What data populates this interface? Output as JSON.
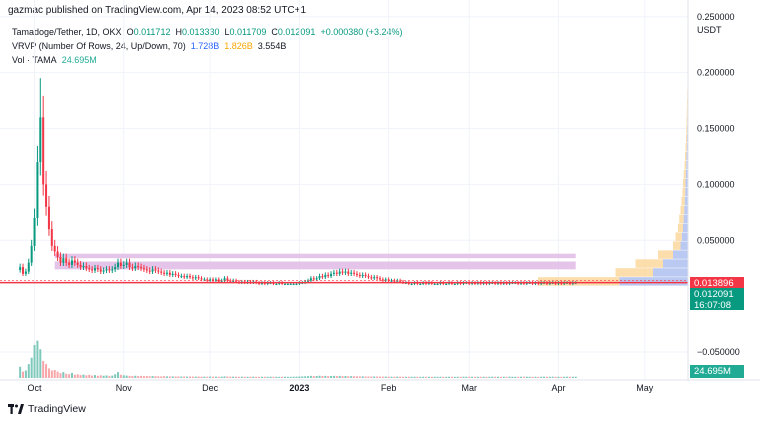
{
  "header": {
    "publisher_line": "gazmac published on TradingView.com, Apr 14, 2023 08:52 UTC+1"
  },
  "legend": {
    "symbol": "Tamadoge/Tether, 1D, OKX",
    "open_label": "O",
    "open_value": "0.011712",
    "high_label": "H",
    "high_value": "0.013330",
    "low_label": "L",
    "low_value": "0.011709",
    "close_label": "C",
    "close_value": "0.012091",
    "change": "+0.000380 (+3.24%)",
    "vrvp_label": "VRVP (Number Of Rows, 24, Up/Down, 70)",
    "vrvp_up": "1.728B",
    "vrvp_down": "1.826B",
    "vrvp_total": "3.554B",
    "vol_label": "Vol · TAMA",
    "vol_value": "24.695M"
  },
  "price_tags": {
    "red": "0.013896",
    "green_price": "0.012091",
    "green_countdown": "16:07:08",
    "volume": "24.695M"
  },
  "footer": {
    "brand": "TradingView"
  },
  "colors": {
    "up": "#089981",
    "down": "#f23645",
    "vol_up": "#7fc9bc",
    "vol_down": "#f7a7a9",
    "profile_up": "#aebfef",
    "profile_down": "#fcd79e",
    "value_area": "#e1bee7"
  },
  "chart_data": {
    "type": "candlestick",
    "currency": "USDT",
    "y_ticks": [
      0.25,
      0.2,
      0.15,
      0.1,
      0.05,
      -0.05
    ],
    "y_tick_labels": [
      "0.250000",
      "0.200000",
      "0.150000",
      "0.100000",
      "0.050000",
      "−0.050000"
    ],
    "ylim": [
      -0.075,
      0.265
    ],
    "x_ticks": [
      {
        "label": "Oct",
        "date": "2022-10-01"
      },
      {
        "label": "Nov",
        "date": "2022-11-01"
      },
      {
        "label": "Dec",
        "date": "2022-12-01"
      },
      {
        "label": "2023",
        "date": "2023-01-01"
      },
      {
        "label": "Feb",
        "date": "2023-02-01"
      },
      {
        "label": "Mar",
        "date": "2023-03-01"
      },
      {
        "label": "Apr",
        "date": "2023-04-01"
      },
      {
        "label": "May",
        "date": "2023-05-01"
      }
    ],
    "xlim": [
      "2022-09-19",
      "2023-05-16"
    ],
    "first_date": "2022-09-26",
    "closes": [
      0.026,
      0.02,
      0.022,
      0.03,
      0.045,
      0.07,
      0.12,
      0.16,
      0.1,
      0.08,
      0.06,
      0.045,
      0.04,
      0.035,
      0.03,
      0.034,
      0.03,
      0.028,
      0.032,
      0.03,
      0.028,
      0.026,
      0.027,
      0.025,
      0.024,
      0.023,
      0.025,
      0.024,
      0.022,
      0.023,
      0.024,
      0.023,
      0.024,
      0.026,
      0.03,
      0.027,
      0.028,
      0.03,
      0.026,
      0.025,
      0.027,
      0.026,
      0.025,
      0.024,
      0.023,
      0.022,
      0.024,
      0.023,
      0.022,
      0.021,
      0.02,
      0.021,
      0.019,
      0.02,
      0.019,
      0.018,
      0.018,
      0.017,
      0.018,
      0.017,
      0.016,
      0.017,
      0.016,
      0.015,
      0.015,
      0.014,
      0.015,
      0.014,
      0.015,
      0.013,
      0.014,
      0.016,
      0.014,
      0.013,
      0.014,
      0.013,
      0.012,
      0.013,
      0.012,
      0.013,
      0.012,
      0.013,
      0.012,
      0.011,
      0.012,
      0.011,
      0.012,
      0.012,
      0.011,
      0.011,
      0.012,
      0.011,
      0.011,
      0.011,
      0.011,
      0.011,
      0.011,
      0.012,
      0.012,
      0.013,
      0.014,
      0.016,
      0.015,
      0.016,
      0.018,
      0.017,
      0.019,
      0.018,
      0.02,
      0.021,
      0.02,
      0.022,
      0.021,
      0.022,
      0.02,
      0.021,
      0.02,
      0.019,
      0.018,
      0.019,
      0.018,
      0.017,
      0.016,
      0.017,
      0.016,
      0.015,
      0.014,
      0.015,
      0.014,
      0.014,
      0.013,
      0.014,
      0.013,
      0.012,
      0.012,
      0.011,
      0.011,
      0.012,
      0.011,
      0.011,
      0.012,
      0.011,
      0.012,
      0.011,
      0.011,
      0.011,
      0.012,
      0.011,
      0.011,
      0.012,
      0.011,
      0.011,
      0.012,
      0.011,
      0.012,
      0.012,
      0.011,
      0.012,
      0.011,
      0.012,
      0.011,
      0.012,
      0.011,
      0.012,
      0.012,
      0.011,
      0.012,
      0.011,
      0.012,
      0.011,
      0.012,
      0.012,
      0.012,
      0.011,
      0.012,
      0.011,
      0.012,
      0.012,
      0.011,
      0.012,
      0.011,
      0.012,
      0.012,
      0.011,
      0.012,
      0.012,
      0.011,
      0.012,
      0.011,
      0.012,
      0.012,
      0.011,
      0.012,
      0.012
    ],
    "peak_high": 0.195,
    "volume_millions": [
      210,
      120,
      140,
      260,
      380,
      620,
      700,
      540,
      320,
      260,
      180,
      140,
      150,
      120,
      90,
      110,
      80,
      70,
      95,
      60,
      70,
      55,
      65,
      50,
      60,
      45,
      55,
      40,
      50,
      42,
      48,
      40,
      45,
      70,
      110,
      60,
      50,
      45,
      40,
      38,
      42,
      36,
      40,
      35,
      38,
      33,
      36,
      34,
      32,
      30,
      34,
      31,
      29,
      30,
      28,
      30,
      27,
      29,
      26,
      28,
      27,
      26,
      28,
      25,
      26,
      24,
      27,
      25,
      26,
      24,
      25,
      30,
      28,
      25,
      26,
      24,
      23,
      25,
      24,
      23,
      24,
      25,
      23,
      22,
      24,
      23,
      22,
      25,
      23,
      24,
      22,
      23,
      24,
      23,
      22,
      24,
      26,
      28,
      30,
      32,
      35,
      40,
      36,
      38,
      42,
      38,
      40,
      36,
      38,
      40,
      37,
      39,
      36,
      38,
      34,
      35,
      33,
      32,
      30,
      31,
      29,
      28,
      27,
      29,
      28,
      27,
      26,
      27,
      26,
      25,
      24,
      26,
      25,
      24,
      23,
      24,
      23,
      24,
      23,
      22,
      24,
      23,
      24,
      22,
      23,
      22,
      24,
      23,
      22,
      24,
      23,
      22,
      24,
      23,
      25,
      24,
      23,
      24,
      22,
      24,
      23,
      24,
      22,
      24,
      25,
      23,
      24,
      22,
      24,
      23,
      25,
      24,
      23,
      22,
      24,
      23,
      25,
      24,
      23,
      24,
      22,
      24,
      25,
      23,
      24,
      25,
      23,
      24,
      22,
      24,
      25,
      23,
      24,
      24.695
    ],
    "volume_ylim_millions": [
      0,
      1500
    ],
    "current_price": 0.012091,
    "value_area_high": 0.0139,
    "volume_profile": [
      {
        "price_low": 0.009,
        "price_high": 0.017,
        "up": 0.55,
        "down": 0.65
      },
      {
        "price_low": 0.017,
        "price_high": 0.025,
        "up": 0.28,
        "down": 0.3
      },
      {
        "price_low": 0.025,
        "price_high": 0.033,
        "up": 0.2,
        "down": 0.22
      },
      {
        "price_low": 0.033,
        "price_high": 0.041,
        "up": 0.12,
        "down": 0.12
      },
      {
        "price_low": 0.041,
        "price_high": 0.049,
        "up": 0.06,
        "down": 0.06
      },
      {
        "price_low": 0.049,
        "price_high": 0.057,
        "up": 0.05,
        "down": 0.05
      },
      {
        "price_low": 0.057,
        "price_high": 0.065,
        "up": 0.04,
        "down": 0.04
      },
      {
        "price_low": 0.065,
        "price_high": 0.073,
        "up": 0.035,
        "down": 0.035
      },
      {
        "price_low": 0.073,
        "price_high": 0.081,
        "up": 0.03,
        "down": 0.03
      },
      {
        "price_low": 0.081,
        "price_high": 0.089,
        "up": 0.026,
        "down": 0.026
      },
      {
        "price_low": 0.089,
        "price_high": 0.097,
        "up": 0.022,
        "down": 0.022
      },
      {
        "price_low": 0.097,
        "price_high": 0.105,
        "up": 0.02,
        "down": 0.02
      },
      {
        "price_low": 0.105,
        "price_high": 0.113,
        "up": 0.017,
        "down": 0.017
      },
      {
        "price_low": 0.113,
        "price_high": 0.121,
        "up": 0.014,
        "down": 0.014
      },
      {
        "price_low": 0.121,
        "price_high": 0.129,
        "up": 0.012,
        "down": 0.012
      },
      {
        "price_low": 0.129,
        "price_high": 0.137,
        "up": 0.01,
        "down": 0.01
      },
      {
        "price_low": 0.137,
        "price_high": 0.145,
        "up": 0.008,
        "down": 0.008
      },
      {
        "price_low": 0.145,
        "price_high": 0.153,
        "up": 0.007,
        "down": 0.007
      },
      {
        "price_low": 0.153,
        "price_high": 0.161,
        "up": 0.006,
        "down": 0.006
      },
      {
        "price_low": 0.161,
        "price_high": 0.169,
        "up": 0.005,
        "down": 0.005
      },
      {
        "price_low": 0.169,
        "price_high": 0.177,
        "up": 0.004,
        "down": 0.004
      },
      {
        "price_low": 0.177,
        "price_high": 0.185,
        "up": 0.003,
        "down": 0.003
      },
      {
        "price_low": 0.185,
        "price_high": 0.193,
        "up": 0.002,
        "down": 0.002
      }
    ]
  }
}
